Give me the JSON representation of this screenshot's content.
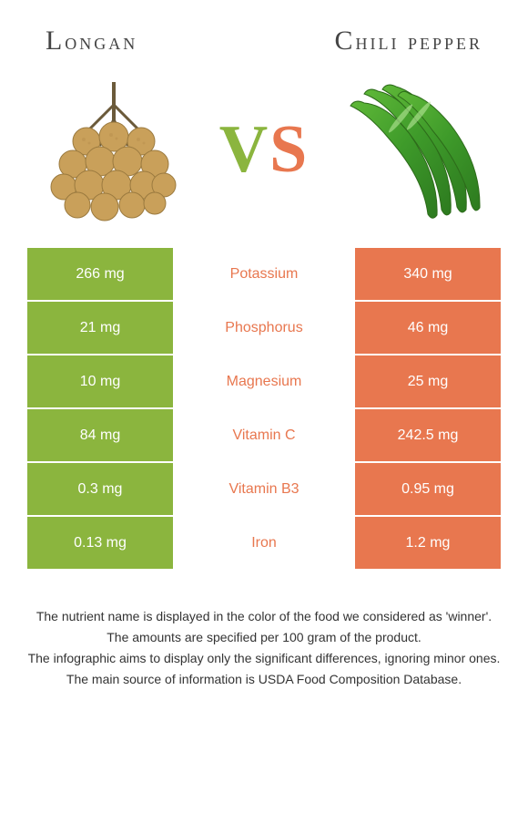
{
  "colors": {
    "left_food": "#8bb53e",
    "right_food": "#e8774f",
    "bg": "#ffffff",
    "text": "#333333",
    "vs_v": "#8bb53e",
    "vs_s": "#e8774f"
  },
  "header": {
    "left_title": "Longan",
    "right_title": "Chili Pepper"
  },
  "vs": {
    "v": "V",
    "s": "S"
  },
  "comparison": {
    "type": "table",
    "rows": [
      {
        "left": "266 mg",
        "label": "Potassium",
        "right": "340 mg",
        "winner": "right"
      },
      {
        "left": "21 mg",
        "label": "Phosphorus",
        "right": "46 mg",
        "winner": "right"
      },
      {
        "left": "10 mg",
        "label": "Magnesium",
        "right": "25 mg",
        "winner": "right"
      },
      {
        "left": "84 mg",
        "label": "Vitamin C",
        "right": "242.5 mg",
        "winner": "right"
      },
      {
        "left": "0.3 mg",
        "label": "Vitamin B3",
        "right": "0.95 mg",
        "winner": "right"
      },
      {
        "left": "0.13 mg",
        "label": "Iron",
        "right": "1.2 mg",
        "winner": "right"
      }
    ]
  },
  "footnotes": [
    "The nutrient name is displayed in the color of the food we considered as 'winner'.",
    "The amounts are specified per 100 gram of the product.",
    "The infographic aims to display only the significant differences, ignoring minor ones.",
    "The main source of information is USDA Food Composition Database."
  ]
}
